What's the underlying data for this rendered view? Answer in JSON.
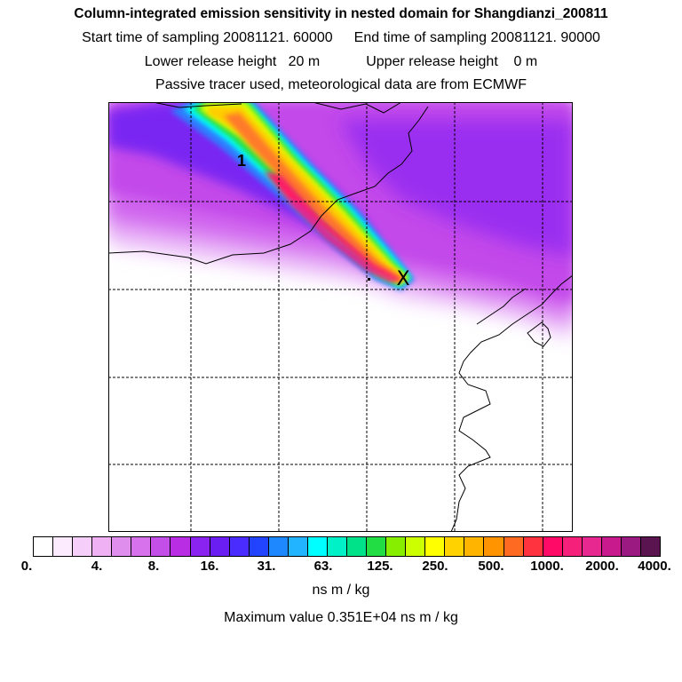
{
  "header": {
    "title": "Column-integrated emission sensitivity in nested domain for Shangdianzi_200811",
    "start_label": "Start time of sampling 20081121. 60000",
    "end_label": "End time of sampling 20081121. 90000",
    "lower_label": "Lower release height   20 m",
    "upper_label": "Upper release height    0 m",
    "tracer_note": "Passive tracer used, meteorological data are from ECMWF"
  },
  "map": {
    "plume_label": "1",
    "release_marker": "X",
    "description_colors": {
      "background_low": "#cc66ff",
      "plume_core": "#ff1a66"
    }
  },
  "legend": {
    "colors": [
      "#ffffff",
      "#fcebfe",
      "#f5cef9",
      "#efb0f4",
      "#e08eee",
      "#d771ec",
      "#c44ee8",
      "#b92ee5",
      "#8a22f0",
      "#6a1ef2",
      "#4a2cff",
      "#2244ff",
      "#1e88ff",
      "#22b4ff",
      "#00ffff",
      "#00f0c8",
      "#00e28a",
      "#22dd44",
      "#88ee00",
      "#ccff00",
      "#ffff00",
      "#ffd200",
      "#ffb400",
      "#ff9400",
      "#ff6a22",
      "#ff3240",
      "#ff0a66",
      "#f5207a",
      "#e62890",
      "#c81a8c",
      "#9a1a82",
      "#5a1450"
    ],
    "tick_labels": [
      "0.",
      "4.",
      "8.",
      "16.",
      "31.",
      "63.",
      "125.",
      "250.",
      "500.",
      "1000.",
      "2000.",
      "4000."
    ],
    "units": "ns m / kg",
    "max_text": "Maximum value  0.351E+04 ns m / kg"
  }
}
